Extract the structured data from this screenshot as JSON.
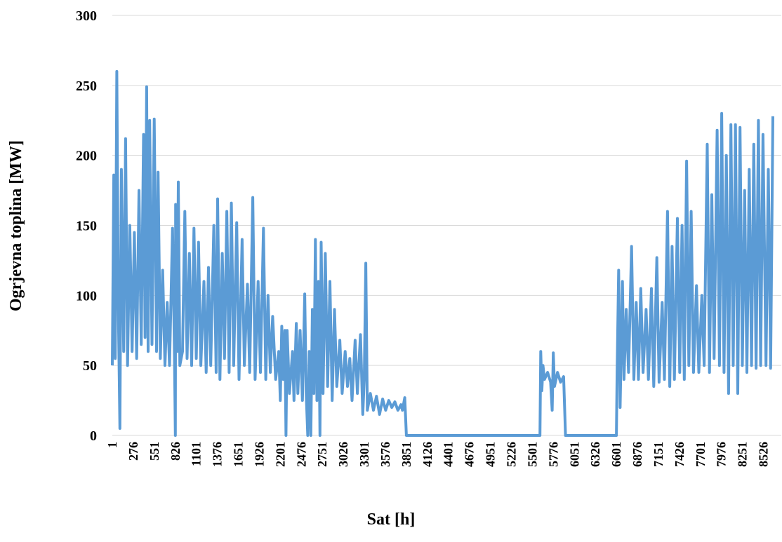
{
  "chart_data": {
    "type": "line",
    "x_label": "Sat [h]",
    "y_label": "Ogrjevna toplina [MW]",
    "xlim": [
      1,
      8760
    ],
    "xticks": [
      1,
      276,
      551,
      826,
      1101,
      1376,
      1651,
      1926,
      2201,
      2476,
      2751,
      3026,
      3301,
      3576,
      3851,
      4126,
      4401,
      4676,
      4951,
      5226,
      5501,
      5776,
      6051,
      6326,
      6601,
      6876,
      7151,
      7426,
      7701,
      7976,
      8251,
      8526
    ],
    "ylim": [
      0,
      300
    ],
    "yticks": [
      0,
      50,
      100,
      150,
      200,
      250,
      300
    ],
    "grid": true,
    "x": [
      1,
      20,
      40,
      60,
      80,
      100,
      120,
      150,
      175,
      200,
      230,
      260,
      290,
      320,
      350,
      380,
      410,
      430,
      450,
      470,
      490,
      520,
      550,
      580,
      600,
      630,
      660,
      690,
      720,
      750,
      790,
      815,
      826,
      830,
      850,
      865,
      885,
      920,
      950,
      980,
      1010,
      1040,
      1070,
      1100,
      1130,
      1160,
      1200,
      1230,
      1260,
      1290,
      1330,
      1360,
      1380,
      1410,
      1440,
      1470,
      1500,
      1530,
      1560,
      1590,
      1630,
      1660,
      1700,
      1730,
      1770,
      1800,
      1840,
      1870,
      1910,
      1940,
      1980,
      2010,
      2040,
      2070,
      2100,
      2140,
      2180,
      2200,
      2220,
      2240,
      2260,
      2275,
      2290,
      2320,
      2360,
      2380,
      2410,
      2430,
      2460,
      2490,
      2520,
      2540,
      2560,
      2580,
      2600,
      2620,
      2640,
      2660,
      2680,
      2700,
      2720,
      2735,
      2760,
      2790,
      2820,
      2850,
      2880,
      2910,
      2940,
      2980,
      3010,
      3050,
      3080,
      3110,
      3140,
      3180,
      3210,
      3250,
      3280,
      3300,
      3320,
      3340,
      3380,
      3420,
      3460,
      3500,
      3540,
      3580,
      3620,
      3660,
      3700,
      3740,
      3780,
      3800,
      3830,
      3851,
      5600,
      5610,
      5625,
      5640,
      5660,
      5700,
      5740,
      5760,
      5775,
      5790,
      5830,
      5870,
      5910,
      5935,
      6601,
      6610,
      6630,
      6650,
      6680,
      6700,
      6730,
      6760,
      6800,
      6830,
      6860,
      6890,
      6920,
      6950,
      6990,
      7020,
      7060,
      7090,
      7130,
      7160,
      7200,
      7230,
      7270,
      7300,
      7330,
      7360,
      7400,
      7430,
      7460,
      7490,
      7520,
      7550,
      7580,
      7610,
      7650,
      7680,
      7720,
      7750,
      7790,
      7820,
      7850,
      7880,
      7920,
      7950,
      7980,
      8010,
      8040,
      8070,
      8100,
      8130,
      8160,
      8190,
      8220,
      8250,
      8280,
      8310,
      8340,
      8370,
      8400,
      8430,
      8460,
      8490,
      8520,
      8560,
      8590,
      8620,
      8650
    ],
    "series": [
      {
        "name": "Ogrjevna toplina",
        "color": "#5b9bd5",
        "values": [
          50,
          186,
          55,
          260,
          90,
          5,
          190,
          60,
          212,
          50,
          150,
          60,
          145,
          55,
          175,
          65,
          215,
          70,
          249,
          60,
          225,
          65,
          226,
          60,
          188,
          55,
          118,
          50,
          95,
          50,
          148,
          55,
          0,
          165,
          60,
          181,
          50,
          60,
          160,
          55,
          130,
          50,
          148,
          55,
          138,
          50,
          110,
          45,
          120,
          50,
          150,
          45,
          169,
          40,
          130,
          55,
          160,
          45,
          166,
          50,
          152,
          40,
          140,
          50,
          108,
          45,
          170,
          40,
          110,
          45,
          148,
          40,
          100,
          45,
          85,
          40,
          60,
          25,
          78,
          40,
          75,
          0,
          75,
          30,
          60,
          25,
          80,
          30,
          75,
          25,
          101,
          30,
          0,
          60,
          0,
          90,
          30,
          140,
          25,
          110,
          0,
          138,
          30,
          130,
          35,
          110,
          25,
          90,
          35,
          68,
          30,
          60,
          35,
          55,
          25,
          68,
          30,
          72,
          15,
          40,
          123,
          18,
          30,
          18,
          28,
          15,
          26,
          18,
          25,
          20,
          24,
          18,
          22,
          18,
          27,
          0,
          0,
          60,
          32,
          50,
          40,
          45,
          38,
          18,
          59,
          35,
          45,
          38,
          42,
          0,
          0,
          45,
          118,
          20,
          110,
          40,
          90,
          45,
          135,
          40,
          95,
          40,
          105,
          45,
          90,
          40,
          105,
          35,
          127,
          38,
          95,
          40,
          160,
          35,
          135,
          40,
          155,
          45,
          150,
          40,
          196,
          50,
          160,
          45,
          107,
          45,
          100,
          50,
          208,
          45,
          172,
          55,
          218,
          50,
          230,
          45,
          200,
          30,
          222,
          50,
          222,
          30,
          220,
          50,
          175,
          45,
          190,
          50,
          208,
          48,
          225,
          50,
          215,
          50,
          190,
          48,
          228
        ]
      }
    ]
  }
}
